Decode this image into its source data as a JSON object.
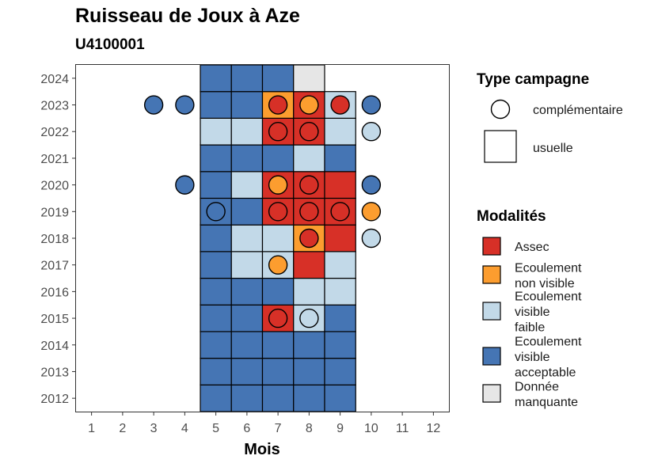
{
  "chart_data": {
    "type": "heatmap",
    "title": "Ruisseau de Joux à Aze",
    "subtitle": "U4100001",
    "xlabel": "Mois",
    "ylabel": "",
    "x_ticks": [
      "1",
      "2",
      "3",
      "4",
      "5",
      "6",
      "7",
      "8",
      "9",
      "10",
      "11",
      "12"
    ],
    "y_ticks": [
      "2012",
      "2013",
      "2014",
      "2015",
      "2016",
      "2017",
      "2018",
      "2019",
      "2020",
      "2021",
      "2022",
      "2023",
      "2024"
    ],
    "xlim": [
      0.5,
      12.5
    ],
    "ylim": [
      2011.5,
      2024.5
    ],
    "grid": false,
    "legend_position": "right",
    "categories": [
      {
        "key": "assec",
        "label_lines": [
          "Assec"
        ],
        "color": "#d73027"
      },
      {
        "key": "nonvisible",
        "label_lines": [
          "Ecoulement",
          "non visible"
        ],
        "color": "#fc9d2f"
      },
      {
        "key": "faible",
        "label_lines": [
          "Ecoulement",
          "visible",
          "faible"
        ],
        "color": "#c2d9e8"
      },
      {
        "key": "acceptable",
        "label_lines": [
          "Ecoulement",
          "visible",
          "acceptable"
        ],
        "color": "#4575b4"
      },
      {
        "key": "manquante",
        "label_lines": [
          "Donnée",
          "manquante"
        ],
        "color": "#e6e6e6"
      }
    ],
    "campaign_legend": {
      "title": "Type campagne",
      "items": [
        {
          "key": "complementaire",
          "label": "complémentaire",
          "shape": "circle"
        },
        {
          "key": "usuelle",
          "label": "usuelle",
          "shape": "square"
        }
      ]
    },
    "modalites_legend_title": "Modalités",
    "usuelle": [
      {
        "year": 2012,
        "month": 5,
        "value": "acceptable"
      },
      {
        "year": 2012,
        "month": 6,
        "value": "acceptable"
      },
      {
        "year": 2012,
        "month": 7,
        "value": "acceptable"
      },
      {
        "year": 2012,
        "month": 8,
        "value": "acceptable"
      },
      {
        "year": 2012,
        "month": 9,
        "value": "acceptable"
      },
      {
        "year": 2013,
        "month": 5,
        "value": "acceptable"
      },
      {
        "year": 2013,
        "month": 6,
        "value": "acceptable"
      },
      {
        "year": 2013,
        "month": 7,
        "value": "acceptable"
      },
      {
        "year": 2013,
        "month": 8,
        "value": "acceptable"
      },
      {
        "year": 2013,
        "month": 9,
        "value": "acceptable"
      },
      {
        "year": 2014,
        "month": 5,
        "value": "acceptable"
      },
      {
        "year": 2014,
        "month": 6,
        "value": "acceptable"
      },
      {
        "year": 2014,
        "month": 7,
        "value": "acceptable"
      },
      {
        "year": 2014,
        "month": 8,
        "value": "acceptable"
      },
      {
        "year": 2014,
        "month": 9,
        "value": "acceptable"
      },
      {
        "year": 2015,
        "month": 5,
        "value": "acceptable"
      },
      {
        "year": 2015,
        "month": 6,
        "value": "acceptable"
      },
      {
        "year": 2015,
        "month": 7,
        "value": "assec"
      },
      {
        "year": 2015,
        "month": 8,
        "value": "faible"
      },
      {
        "year": 2015,
        "month": 9,
        "value": "acceptable"
      },
      {
        "year": 2016,
        "month": 5,
        "value": "acceptable"
      },
      {
        "year": 2016,
        "month": 6,
        "value": "acceptable"
      },
      {
        "year": 2016,
        "month": 7,
        "value": "acceptable"
      },
      {
        "year": 2016,
        "month": 8,
        "value": "faible"
      },
      {
        "year": 2016,
        "month": 9,
        "value": "faible"
      },
      {
        "year": 2017,
        "month": 5,
        "value": "acceptable"
      },
      {
        "year": 2017,
        "month": 6,
        "value": "faible"
      },
      {
        "year": 2017,
        "month": 7,
        "value": "faible"
      },
      {
        "year": 2017,
        "month": 8,
        "value": "assec"
      },
      {
        "year": 2017,
        "month": 9,
        "value": "faible"
      },
      {
        "year": 2018,
        "month": 5,
        "value": "acceptable"
      },
      {
        "year": 2018,
        "month": 6,
        "value": "faible"
      },
      {
        "year": 2018,
        "month": 7,
        "value": "faible"
      },
      {
        "year": 2018,
        "month": 8,
        "value": "nonvisible"
      },
      {
        "year": 2018,
        "month": 9,
        "value": "assec"
      },
      {
        "year": 2019,
        "month": 5,
        "value": "acceptable"
      },
      {
        "year": 2019,
        "month": 6,
        "value": "acceptable"
      },
      {
        "year": 2019,
        "month": 7,
        "value": "assec"
      },
      {
        "year": 2019,
        "month": 8,
        "value": "assec"
      },
      {
        "year": 2019,
        "month": 9,
        "value": "assec"
      },
      {
        "year": 2020,
        "month": 5,
        "value": "acceptable"
      },
      {
        "year": 2020,
        "month": 6,
        "value": "faible"
      },
      {
        "year": 2020,
        "month": 7,
        "value": "assec"
      },
      {
        "year": 2020,
        "month": 8,
        "value": "assec"
      },
      {
        "year": 2020,
        "month": 9,
        "value": "assec"
      },
      {
        "year": 2021,
        "month": 5,
        "value": "acceptable"
      },
      {
        "year": 2021,
        "month": 6,
        "value": "acceptable"
      },
      {
        "year": 2021,
        "month": 7,
        "value": "acceptable"
      },
      {
        "year": 2021,
        "month": 8,
        "value": "faible"
      },
      {
        "year": 2021,
        "month": 9,
        "value": "acceptable"
      },
      {
        "year": 2022,
        "month": 5,
        "value": "faible"
      },
      {
        "year": 2022,
        "month": 6,
        "value": "faible"
      },
      {
        "year": 2022,
        "month": 7,
        "value": "assec"
      },
      {
        "year": 2022,
        "month": 8,
        "value": "assec"
      },
      {
        "year": 2022,
        "month": 9,
        "value": "faible"
      },
      {
        "year": 2023,
        "month": 5,
        "value": "acceptable"
      },
      {
        "year": 2023,
        "month": 6,
        "value": "acceptable"
      },
      {
        "year": 2023,
        "month": 7,
        "value": "nonvisible"
      },
      {
        "year": 2023,
        "month": 8,
        "value": "assec"
      },
      {
        "year": 2023,
        "month": 9,
        "value": "faible"
      },
      {
        "year": 2024,
        "month": 5,
        "value": "acceptable"
      },
      {
        "year": 2024,
        "month": 6,
        "value": "acceptable"
      },
      {
        "year": 2024,
        "month": 7,
        "value": "acceptable"
      },
      {
        "year": 2024,
        "month": 8,
        "value": "manquante"
      }
    ],
    "complementaire": [
      {
        "year": 2023,
        "month": 3,
        "value": "acceptable"
      },
      {
        "year": 2023,
        "month": 4,
        "value": "acceptable"
      },
      {
        "year": 2023,
        "month": 7,
        "value": "assec"
      },
      {
        "year": 2023,
        "month": 8,
        "value": "nonvisible"
      },
      {
        "year": 2023,
        "month": 9,
        "value": "assec"
      },
      {
        "year": 2023,
        "month": 10,
        "value": "acceptable"
      },
      {
        "year": 2022,
        "month": 7,
        "value": "assec"
      },
      {
        "year": 2022,
        "month": 8,
        "value": "assec"
      },
      {
        "year": 2022,
        "month": 10,
        "value": "faible"
      },
      {
        "year": 2020,
        "month": 4,
        "value": "acceptable"
      },
      {
        "year": 2020,
        "month": 7,
        "value": "nonvisible"
      },
      {
        "year": 2020,
        "month": 8,
        "value": "assec"
      },
      {
        "year": 2020,
        "month": 10,
        "value": "acceptable"
      },
      {
        "year": 2019,
        "month": 5,
        "value": "acceptable"
      },
      {
        "year": 2019,
        "month": 7,
        "value": "assec"
      },
      {
        "year": 2019,
        "month": 8,
        "value": "assec"
      },
      {
        "year": 2019,
        "month": 9,
        "value": "assec"
      },
      {
        "year": 2019,
        "month": 10,
        "value": "nonvisible"
      },
      {
        "year": 2018,
        "month": 8,
        "value": "assec"
      },
      {
        "year": 2018,
        "month": 10,
        "value": "faible"
      },
      {
        "year": 2017,
        "month": 7,
        "value": "nonvisible"
      },
      {
        "year": 2015,
        "month": 7,
        "value": "assec"
      },
      {
        "year": 2015,
        "month": 8,
        "value": "faible"
      }
    ]
  }
}
